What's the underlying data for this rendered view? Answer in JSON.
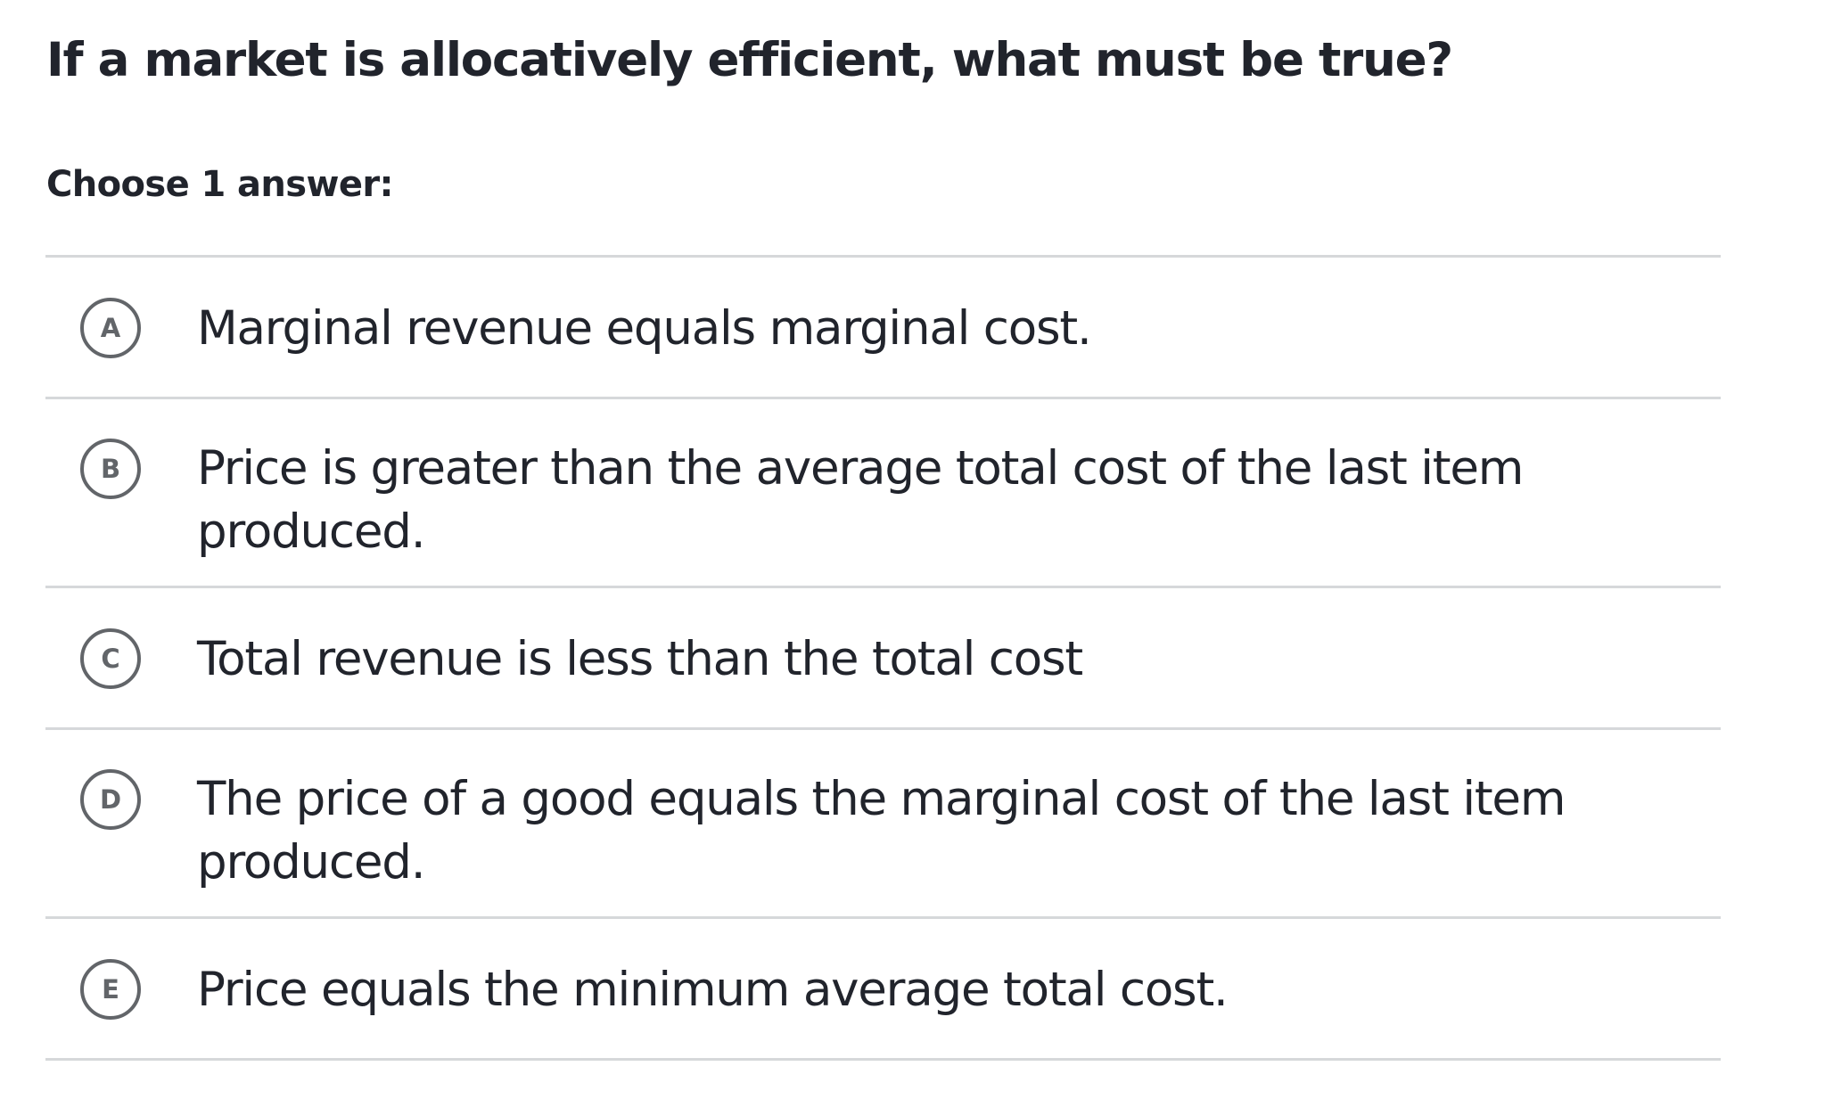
{
  "question": {
    "text": "If a market is allocatively efficient, what must be true?"
  },
  "instruction": "Choose 1 answer:",
  "choices": [
    {
      "letter": "A",
      "text": "Marginal revenue equals marginal cost."
    },
    {
      "letter": "B",
      "text": "Price is greater than the average total cost of the last item produced."
    },
    {
      "letter": "C",
      "text": "Total revenue is less than the total cost"
    },
    {
      "letter": "D",
      "text": "The price of a good equals the marginal cost of the last item produced."
    },
    {
      "letter": "E",
      "text": "Price equals the minimum average total cost."
    }
  ],
  "colors": {
    "text": "#21242c",
    "circle_border": "#626569",
    "divider": "#d6d8da",
    "background": "#ffffff"
  }
}
